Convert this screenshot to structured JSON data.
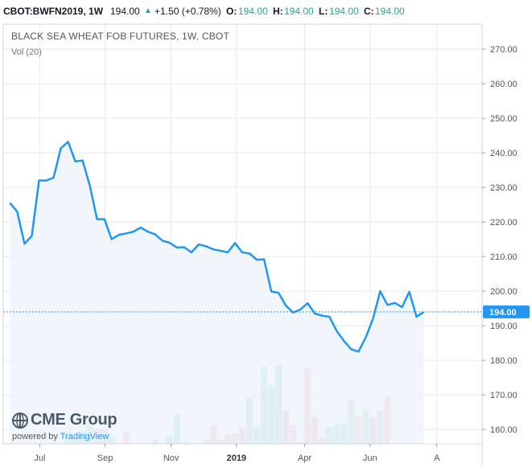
{
  "header": {
    "symbol": "CBOT:BWFN2019, 1W",
    "last": "194.00",
    "change": "+1.50 (+0.78%)",
    "o_label": "O:",
    "o_val": "194.00",
    "h_label": "H:",
    "h_val": "194.00",
    "l_label": "L:",
    "l_val": "194.00",
    "c_label": "C:",
    "c_val": "194.00"
  },
  "colors": {
    "line": "#2196f3",
    "area": "#eef4fc",
    "vol_up": "#8dcdc5",
    "vol_down": "#eba1a9",
    "last_badge": "#2196f3",
    "grid": "#e6e9ef"
  },
  "icons": {
    "change_arrow": "up-triangle-icon",
    "logo": "cme-globe-icon"
  },
  "logo": {
    "brand": "CME Group",
    "powered_by": "powered by",
    "tradingview": "TradingView"
  },
  "chart_data": {
    "type": "line",
    "title": "BLACK SEA WHEAT FOB FUTURES, 1W, CBOT",
    "subtitle": "Vol (20)",
    "x_tick_labels": [
      "Jul",
      "Sep",
      "Nov",
      "2019",
      "Apr",
      "Jun",
      "A"
    ],
    "y_ticks": [
      160,
      170,
      180,
      190,
      200,
      210,
      220,
      230,
      240,
      250,
      260,
      270
    ],
    "ylim": [
      155.6,
      276.9
    ],
    "last_value": "194.00",
    "grid": true,
    "series": [
      {
        "values": [
          225.5,
          223,
          213.7,
          216,
          232,
          232,
          232.8,
          241.3,
          243.2,
          237.5,
          237.8,
          230.5,
          220.8,
          220.8,
          215,
          216.3,
          216.7,
          217.2,
          218.4,
          217.2,
          216.4,
          214.6,
          214,
          212.6,
          212.7,
          211.2,
          213.5,
          213,
          212.1,
          211.7,
          211.2,
          213.9,
          211.2,
          210.9,
          209.1,
          209.2,
          199.9,
          199.5,
          195.8,
          193.8,
          194.7,
          196.5,
          193.5,
          192.9,
          192.6,
          188.5,
          185.6,
          183.2,
          182.5,
          186.6,
          192,
          200,
          196,
          196.6,
          195.4,
          199.8,
          192.6,
          194
        ]
      }
    ],
    "volume": {
      "label": "Vol (20)",
      "bars": [
        {
          "w": 9,
          "v": 4,
          "dir": "up"
        },
        {
          "w": 10,
          "v": 3,
          "dir": "up"
        },
        {
          "w": 11,
          "v": 6,
          "dir": "up"
        },
        {
          "w": 12,
          "v": 9,
          "dir": "up"
        },
        {
          "w": 13,
          "v": 7,
          "dir": "down"
        },
        {
          "w": 14,
          "v": 7,
          "dir": "down"
        },
        {
          "w": 15,
          "v": 3,
          "dir": "up"
        },
        {
          "w": 16,
          "v": 0,
          "dir": "up"
        },
        {
          "w": 17,
          "v": 6,
          "dir": "down"
        },
        {
          "w": 18,
          "v": 0,
          "dir": "up"
        },
        {
          "w": 19,
          "v": 0,
          "dir": "up"
        },
        {
          "w": 20,
          "v": 0,
          "dir": "up"
        },
        {
          "w": 21,
          "v": 2,
          "dir": "up"
        },
        {
          "w": 22,
          "v": 0,
          "dir": "up"
        },
        {
          "w": 23,
          "v": 4,
          "dir": "up"
        },
        {
          "w": 24,
          "v": 14,
          "dir": "up"
        },
        {
          "w": 25,
          "v": 1,
          "dir": "down"
        },
        {
          "w": 26,
          "v": 0,
          "dir": "up"
        },
        {
          "w": 27,
          "v": 0,
          "dir": "up"
        },
        {
          "w": 28,
          "v": 2,
          "dir": "up"
        },
        {
          "w": 29,
          "v": 9,
          "dir": "down"
        },
        {
          "w": 30,
          "v": 2,
          "dir": "down"
        },
        {
          "w": 31,
          "v": 4,
          "dir": "down"
        },
        {
          "w": 32,
          "v": 5,
          "dir": "down"
        },
        {
          "w": 33,
          "v": 8,
          "dir": "down"
        },
        {
          "w": 34,
          "v": 22,
          "dir": "up"
        },
        {
          "w": 35,
          "v": 8,
          "dir": "up"
        },
        {
          "w": 36,
          "v": 37,
          "dir": "up"
        },
        {
          "w": 37,
          "v": 28,
          "dir": "up"
        },
        {
          "w": 38,
          "v": 38,
          "dir": "up"
        },
        {
          "w": 39,
          "v": 16,
          "dir": "down"
        },
        {
          "w": 40,
          "v": 9,
          "dir": "down"
        },
        {
          "w": 41,
          "v": 1,
          "dir": "up"
        },
        {
          "w": 42,
          "v": 36,
          "dir": "down"
        },
        {
          "w": 43,
          "v": 13,
          "dir": "down"
        },
        {
          "w": 44,
          "v": 3,
          "dir": "down"
        },
        {
          "w": 45,
          "v": 8,
          "dir": "up"
        },
        {
          "w": 46,
          "v": 9,
          "dir": "up"
        },
        {
          "w": 47,
          "v": 10,
          "dir": "up"
        },
        {
          "w": 48,
          "v": 21,
          "dir": "up"
        },
        {
          "w": 49,
          "v": 13,
          "dir": "down"
        },
        {
          "w": 50,
          "v": 16,
          "dir": "up"
        },
        {
          "w": 51,
          "v": 13,
          "dir": "down"
        },
        {
          "w": 52,
          "v": 16,
          "dir": "up"
        },
        {
          "w": 53,
          "v": 23,
          "dir": "down"
        }
      ]
    }
  }
}
